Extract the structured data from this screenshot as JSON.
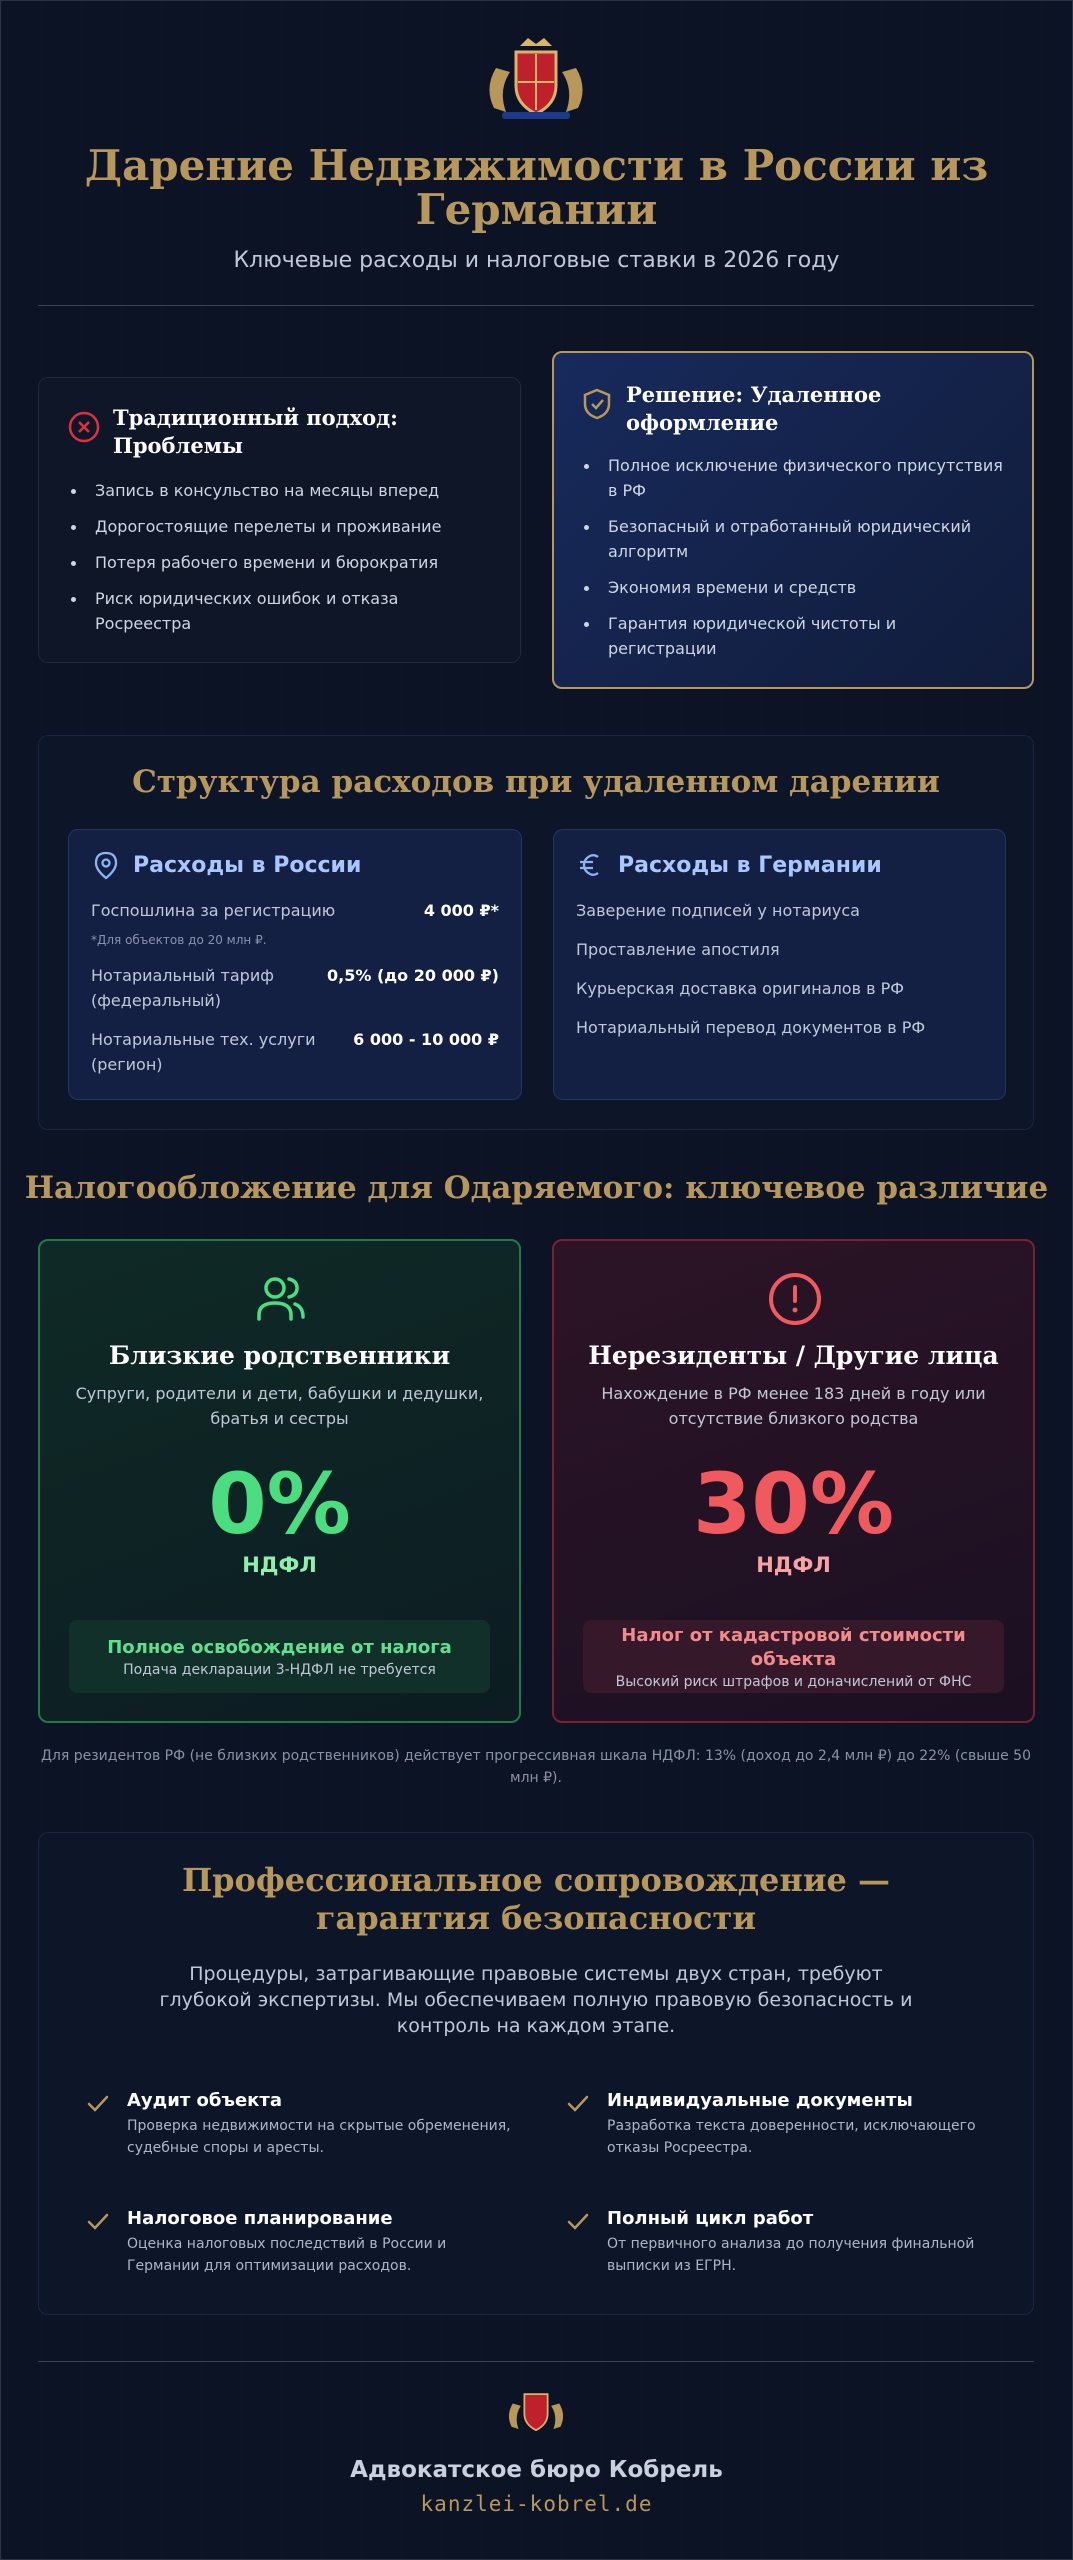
{
  "header": {
    "title": "Дарение Недвижимости в России из Германии",
    "subtitle": "Ключевые расходы и налоговые ставки в 2026 году"
  },
  "comparison": {
    "traditional": {
      "title": "Традиционный подход: Проблемы",
      "items": [
        "Запись в консульство на месяцы вперед",
        "Дорогостоящие перелеты и проживание",
        "Потеря рабочего времени и бюрократия",
        "Риск юридических ошибок и отказа Росреестра"
      ]
    },
    "solution": {
      "title": "Решение: Удаленное оформление",
      "items": [
        "Полное исключение физического присутствия в РФ",
        "Безопасный и отработанный юридический алгоритм",
        "Экономия времени и средств",
        "Гарантия юридической чистоты и регистрации"
      ]
    }
  },
  "costs": {
    "title": "Структура расходов при удаленном дарении",
    "russia": {
      "title": "Расходы в России",
      "rows": [
        {
          "label": "Госпошлина за регистрацию",
          "value": "4 000 ₽*",
          "note": "*Для объектов до 20 млн ₽."
        },
        {
          "label": "Нотариальный тариф (федеральный)",
          "value": "0,5% (до 20 000 ₽)"
        },
        {
          "label": "Нотариальные тех. услуги (регион)",
          "value": "6 000 - 10 000 ₽"
        }
      ]
    },
    "germany": {
      "title": "Расходы в Германии",
      "items": [
        "Заверение подписей у нотариуса",
        "Проставление апостиля",
        "Курьерская доставка оригиналов в РФ",
        "Нотариальный перевод документов в РФ"
      ]
    }
  },
  "taxation": {
    "title": "Налогообложение для Одаряемого: ключевое различие",
    "cards": [
      {
        "title": "Близкие родственники",
        "description": "Супруги, родители и дети, бабушки и дедушки, братья и сестры",
        "rate": "0%",
        "rate_label": "НДФЛ",
        "box_title": "Полное освобождение от налога",
        "box_text": "Подача декларации 3-НДФЛ не требуется"
      },
      {
        "title": "Нерезиденты / Другие лица",
        "description": "Нахождение в РФ менее 183 дней в году или отсутствие близкого родства",
        "rate": "30%",
        "rate_label": "НДФЛ",
        "box_title": "Налог от кадастровой стоимости объекта",
        "box_text": "Высокий риск штрафов и доначислений от ФНС"
      }
    ],
    "note": "Для резидентов РФ (не близких родственников) действует прогрессивная шкала НДФЛ: 13% (доход до 2,4 млн ₽) до 22% (свыше 50 млн ₽)."
  },
  "professional": {
    "title": "Профессиональное сопровождение — гарантия безопасности",
    "intro": "Процедуры, затрагивающие правовые системы двух стран, требуют глубокой экспертизы. Мы обеспечиваем полную правовую безопасность и контроль на каждом этапе.",
    "items": [
      {
        "title": "Аудит объекта",
        "text": "Проверка недвижимости на скрытые обременения, судебные споры и аресты."
      },
      {
        "title": "Индивидуальные документы",
        "text": "Разработка текста доверенности, исключающего отказы Росреестра."
      },
      {
        "title": "Налоговое планирование",
        "text": "Оценка налоговых последствий в России и Германии для оптимизации расходов."
      },
      {
        "title": "Полный цикл работ",
        "text": "От первичного анализа до получения финальной выписки из ЕГРН."
      }
    ]
  },
  "footer": {
    "name": "Адвокатское бюро Кобрель",
    "url": "kanzlei-kobrel.de"
  }
}
